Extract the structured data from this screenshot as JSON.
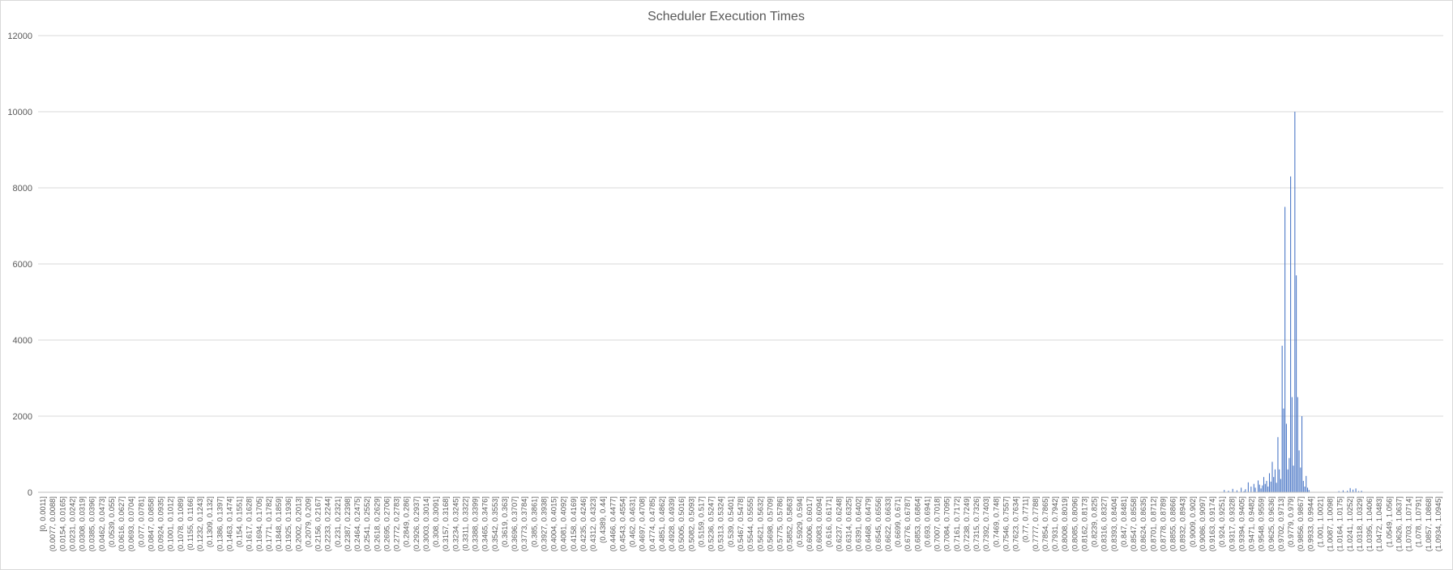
{
  "chart_data": {
    "type": "bar",
    "title": "Scheduler Execution Times",
    "xlabel": "",
    "ylabel": "",
    "ylim": [
      0,
      12000
    ],
    "yticks": [
      "0",
      "2000",
      "4000",
      "6000",
      "8000",
      "10000",
      "12000"
    ],
    "grid": true,
    "legend": "none",
    "bar_color": "#4472C4",
    "category_labels": [
      "[0, 0.0011]",
      "(0.0077, 0.0088]",
      "(0.0154, 0.0165]",
      "(0.0231, 0.0242]",
      "(0.0308, 0.0319]",
      "(0.0385, 0.0396]",
      "(0.0462, 0.0473]",
      "(0.0539, 0.055]",
      "(0.0616, 0.0627]",
      "(0.0693, 0.0704]",
      "(0.077, 0.0781]",
      "(0.0847, 0.0858]",
      "(0.0924, 0.0935]",
      "(0.1001, 0.1012]",
      "(0.1078, 0.1089]",
      "(0.1155, 0.1166]",
      "(0.1232, 0.1243]",
      "(0.1309, 0.132]",
      "(0.1386, 0.1397]",
      "(0.1463, 0.1474]",
      "(0.154, 0.1551]",
      "(0.1617, 0.1628]",
      "(0.1694, 0.1705]",
      "(0.1771, 0.1782]",
      "(0.1848, 0.1859]",
      "(0.1925, 0.1936]",
      "(0.2002, 0.2013]",
      "(0.2079, 0.209]",
      "(0.2156, 0.2167]",
      "(0.2233, 0.2244]",
      "(0.231, 0.2321]",
      "(0.2387, 0.2398]",
      "(0.2464, 0.2475]",
      "(0.2541, 0.2552]",
      "(0.2618, 0.2629]",
      "(0.2695, 0.2706]",
      "(0.2772, 0.2783]",
      "(0.2849, 0.286]",
      "(0.2926, 0.2937]",
      "(0.3003, 0.3014]",
      "(0.308, 0.3091]",
      "(0.3157, 0.3168]",
      "(0.3234, 0.3245]",
      "(0.3311, 0.3322]",
      "(0.3388, 0.3399]",
      "(0.3465, 0.3476]",
      "(0.3542, 0.3553]",
      "(0.3619, 0.363]",
      "(0.3696, 0.3707]",
      "(0.3773, 0.3784]",
      "(0.385, 0.3861]",
      "(0.3927, 0.3938]",
      "(0.4004, 0.4015]",
      "(0.4081, 0.4092]",
      "(0.4158, 0.4169]",
      "(0.4235, 0.4246]",
      "(0.4312, 0.4323]",
      "(0.4389, 0.44]",
      "(0.4466, 0.4477]",
      "(0.4543, 0.4554]",
      "(0.462, 0.4631]",
      "(0.4697, 0.4708]",
      "(0.4774, 0.4785]",
      "(0.4851, 0.4862]",
      "(0.4928, 0.4939]",
      "(0.5005, 0.5016]",
      "(0.5082, 0.5093]",
      "(0.5159, 0.517]",
      "(0.5236, 0.5247]",
      "(0.5313, 0.5324]",
      "(0.539, 0.5401]",
      "(0.5467, 0.5478]",
      "(0.5544, 0.5555]",
      "(0.5621, 0.5632]",
      "(0.5698, 0.5709]",
      "(0.5775, 0.5786]",
      "(0.5852, 0.5863]",
      "(0.5929, 0.594]",
      "(0.6006, 0.6017]",
      "(0.6083, 0.6094]",
      "(0.616, 0.6171]",
      "(0.6237, 0.6248]",
      "(0.6314, 0.6325]",
      "(0.6391, 0.6402]",
      "(0.6468, 0.6479]",
      "(0.6545, 0.6556]",
      "(0.6622, 0.6633]",
      "(0.6699, 0.671]",
      "(0.6776, 0.6787]",
      "(0.6853, 0.6864]",
      "(0.693, 0.6941]",
      "(0.7007, 0.7018]",
      "(0.7084, 0.7095]",
      "(0.7161, 0.7172]",
      "(0.7238, 0.7249]",
      "(0.7315, 0.7326]",
      "(0.7392, 0.7403]",
      "(0.7469, 0.748]",
      "(0.7546, 0.7557]",
      "(0.7623, 0.7634]",
      "(0.77, 0.7711]",
      "(0.7777, 0.7788]",
      "(0.7854, 0.7865]",
      "(0.7931, 0.7942]",
      "(0.8008, 0.8019]",
      "(0.8085, 0.8096]",
      "(0.8162, 0.8173]",
      "(0.8239, 0.825]",
      "(0.8316, 0.8327]",
      "(0.8393, 0.8404]",
      "(0.847, 0.8481]",
      "(0.8547, 0.8558]",
      "(0.8624, 0.8635]",
      "(0.8701, 0.8712]",
      "(0.8778, 0.8789]",
      "(0.8855, 0.8866]",
      "(0.8932, 0.8943]",
      "(0.9009, 0.902]",
      "(0.9086, 0.9097]",
      "(0.9163, 0.9174]",
      "(0.924, 0.9251]",
      "(0.9317, 0.9328]",
      "(0.9394, 0.9405]",
      "(0.9471, 0.9482]",
      "(0.9548, 0.9559]",
      "(0.9625, 0.9636]",
      "(0.9702, 0.9713]",
      "(0.9779, 0.979]",
      "(0.9856, 0.9867]",
      "(0.9933, 0.9944]",
      "(1.001, 1.0021]",
      "(1.0087, 1.0098]",
      "(1.0164, 1.0175]",
      "(1.0241, 1.0252]",
      "(1.0318, 1.0329]",
      "(1.0395, 1.0406]",
      "(1.0472, 1.0483]",
      "(1.0549, 1.056]",
      "(1.0626, 1.0637]",
      "(1.0703, 1.0714]",
      "(1.078, 1.0791]",
      "(1.0857, 1.0868]",
      "(1.0934, 1.0945]"
    ],
    "bin_width": 0.0011,
    "data_points": [
      {
        "x": 0.9239,
        "y": 60
      },
      {
        "x": 0.9272,
        "y": 40
      },
      {
        "x": 0.9305,
        "y": 90
      },
      {
        "x": 0.9338,
        "y": 50
      },
      {
        "x": 0.9371,
        "y": 120
      },
      {
        "x": 0.9393,
        "y": 30
      },
      {
        "x": 0.9404,
        "y": 80
      },
      {
        "x": 0.9426,
        "y": 260
      },
      {
        "x": 0.9448,
        "y": 150
      },
      {
        "x": 0.947,
        "y": 220
      },
      {
        "x": 0.9481,
        "y": 120
      },
      {
        "x": 0.9503,
        "y": 310
      },
      {
        "x": 0.9514,
        "y": 200
      },
      {
        "x": 0.9525,
        "y": 100
      },
      {
        "x": 0.9536,
        "y": 180
      },
      {
        "x": 0.9547,
        "y": 400
      },
      {
        "x": 0.9558,
        "y": 220
      },
      {
        "x": 0.9569,
        "y": 300
      },
      {
        "x": 0.958,
        "y": 150
      },
      {
        "x": 0.9591,
        "y": 500
      },
      {
        "x": 0.9602,
        "y": 280
      },
      {
        "x": 0.9613,
        "y": 800
      },
      {
        "x": 0.9624,
        "y": 400
      },
      {
        "x": 0.9635,
        "y": 600
      },
      {
        "x": 0.9646,
        "y": 250
      },
      {
        "x": 0.9657,
        "y": 1450
      },
      {
        "x": 0.9668,
        "y": 600
      },
      {
        "x": 0.9679,
        "y": 350
      },
      {
        "x": 0.969,
        "y": 3850
      },
      {
        "x": 0.9701,
        "y": 2200
      },
      {
        "x": 0.9712,
        "y": 7500
      },
      {
        "x": 0.9723,
        "y": 1800
      },
      {
        "x": 0.9734,
        "y": 600
      },
      {
        "x": 0.9745,
        "y": 900
      },
      {
        "x": 0.9756,
        "y": 8300
      },
      {
        "x": 0.9767,
        "y": 2500
      },
      {
        "x": 0.9778,
        "y": 700
      },
      {
        "x": 0.9789,
        "y": 10000
      },
      {
        "x": 0.98,
        "y": 5700
      },
      {
        "x": 0.9811,
        "y": 2500
      },
      {
        "x": 0.9822,
        "y": 1100
      },
      {
        "x": 0.9833,
        "y": 650
      },
      {
        "x": 0.9844,
        "y": 2000
      },
      {
        "x": 0.9855,
        "y": 300
      },
      {
        "x": 0.9866,
        "y": 150
      },
      {
        "x": 0.9877,
        "y": 430
      },
      {
        "x": 0.9888,
        "y": 120
      },
      {
        "x": 0.9899,
        "y": 60
      },
      {
        "x": 1.0132,
        "y": 30
      },
      {
        "x": 1.0165,
        "y": 50
      },
      {
        "x": 1.0198,
        "y": 40
      },
      {
        "x": 1.022,
        "y": 110
      },
      {
        "x": 1.0242,
        "y": 70
      },
      {
        "x": 1.0264,
        "y": 100
      },
      {
        "x": 1.0286,
        "y": 30
      },
      {
        "x": 1.0308,
        "y": 40
      }
    ]
  }
}
